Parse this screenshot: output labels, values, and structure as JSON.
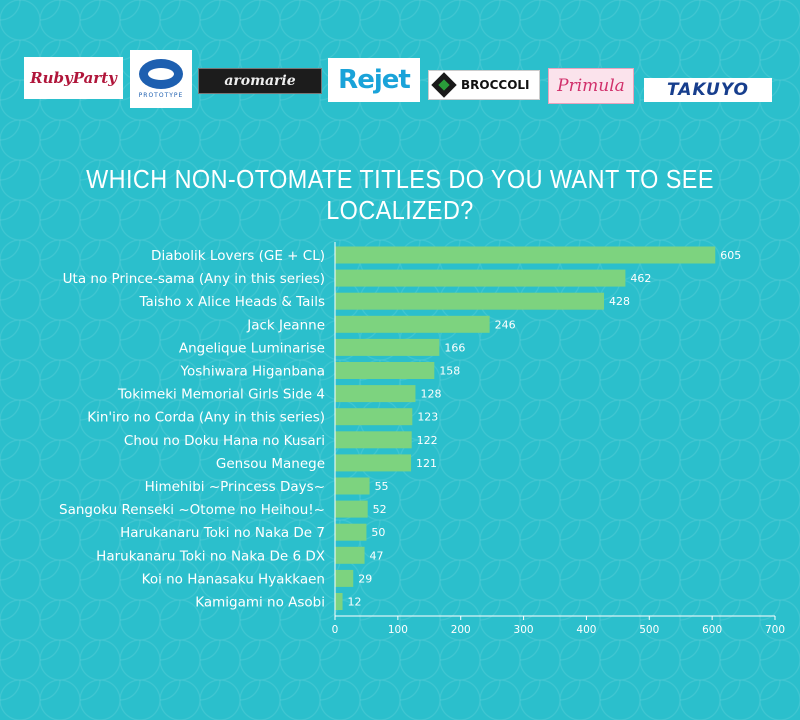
{
  "logos": [
    {
      "name": "Ruby Party",
      "text": "RubyParty"
    },
    {
      "name": "Prototype",
      "text": "PROTOTYPE"
    },
    {
      "name": "Aromarie",
      "text": "aromarie"
    },
    {
      "name": "Rejet",
      "text": "Rejet"
    },
    {
      "name": "Broccoli",
      "text": "BROCCOLI"
    },
    {
      "name": "Primula",
      "text": "Primula"
    },
    {
      "name": "Takuyo",
      "text": "TAKUYO"
    }
  ],
  "chart_data": {
    "type": "bar",
    "orientation": "horizontal",
    "title": "WHICH NON-OTOMATE TITLES DO YOU WANT TO SEE LOCALIZED?",
    "categories": [
      "Diabolik Lovers (GE + CL)",
      "Uta no Prince-sama (Any in this series)",
      "Taisho x Alice Heads & Tails",
      "Jack Jeanne",
      "Angelique Luminarise",
      "Yoshiwara Higanbana",
      "Tokimeki Memorial Girls Side 4",
      "Kin'iro no Corda (Any in this series)",
      "Chou no Doku Hana no Kusari",
      "Gensou Manege",
      "Himehibi ~Princess Days~",
      "Sangoku Renseki ~Otome no Heihou!~",
      "Harukanaru Toki no Naka De 7",
      "Harukanaru Toki no Naka De 6 DX",
      "Koi no Hanasaku Hyakkaen",
      "Kamigami no Asobi"
    ],
    "values": [
      605,
      462,
      428,
      246,
      166,
      158,
      128,
      123,
      122,
      121,
      55,
      52,
      50,
      47,
      29,
      12
    ],
    "xlim": [
      0,
      700
    ],
    "xticks": [
      "0",
      "100",
      "200",
      "300",
      "400",
      "500",
      "600",
      "700"
    ],
    "grid": false,
    "colors": {
      "bar": "#7dd37f",
      "axis": "#ffffff",
      "text": "#ffffff"
    }
  }
}
